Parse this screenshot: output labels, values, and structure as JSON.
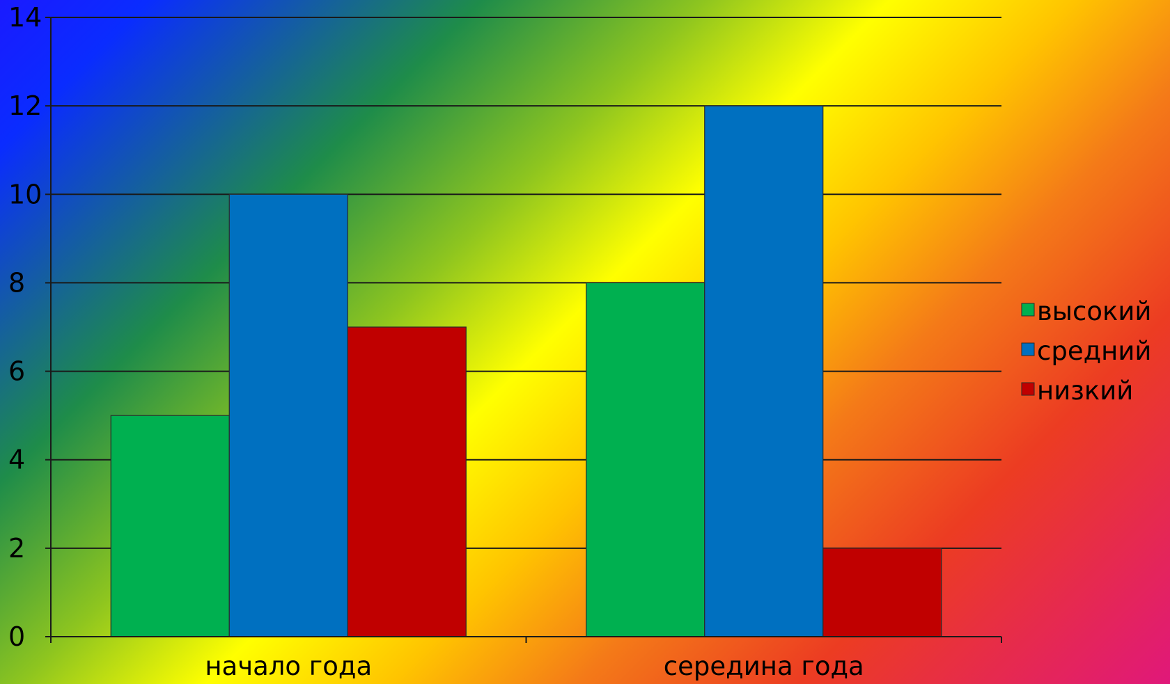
{
  "chart_data": {
    "type": "bar",
    "categories": [
      "начало года",
      "середина года"
    ],
    "series": [
      {
        "name": "высокий",
        "values": [
          5,
          8
        ],
        "color": "#00b050"
      },
      {
        "name": "средний",
        "values": [
          10,
          12
        ],
        "color": "#0070c0"
      },
      {
        "name": "низкий",
        "values": [
          7,
          2
        ],
        "color": "#c00000"
      }
    ],
    "ylim": [
      0,
      14
    ],
    "yticks": [
      0,
      2,
      4,
      6,
      8,
      10,
      12,
      14
    ],
    "grid": true,
    "legend": "right",
    "title": "",
    "xlabel": "",
    "ylabel": ""
  }
}
